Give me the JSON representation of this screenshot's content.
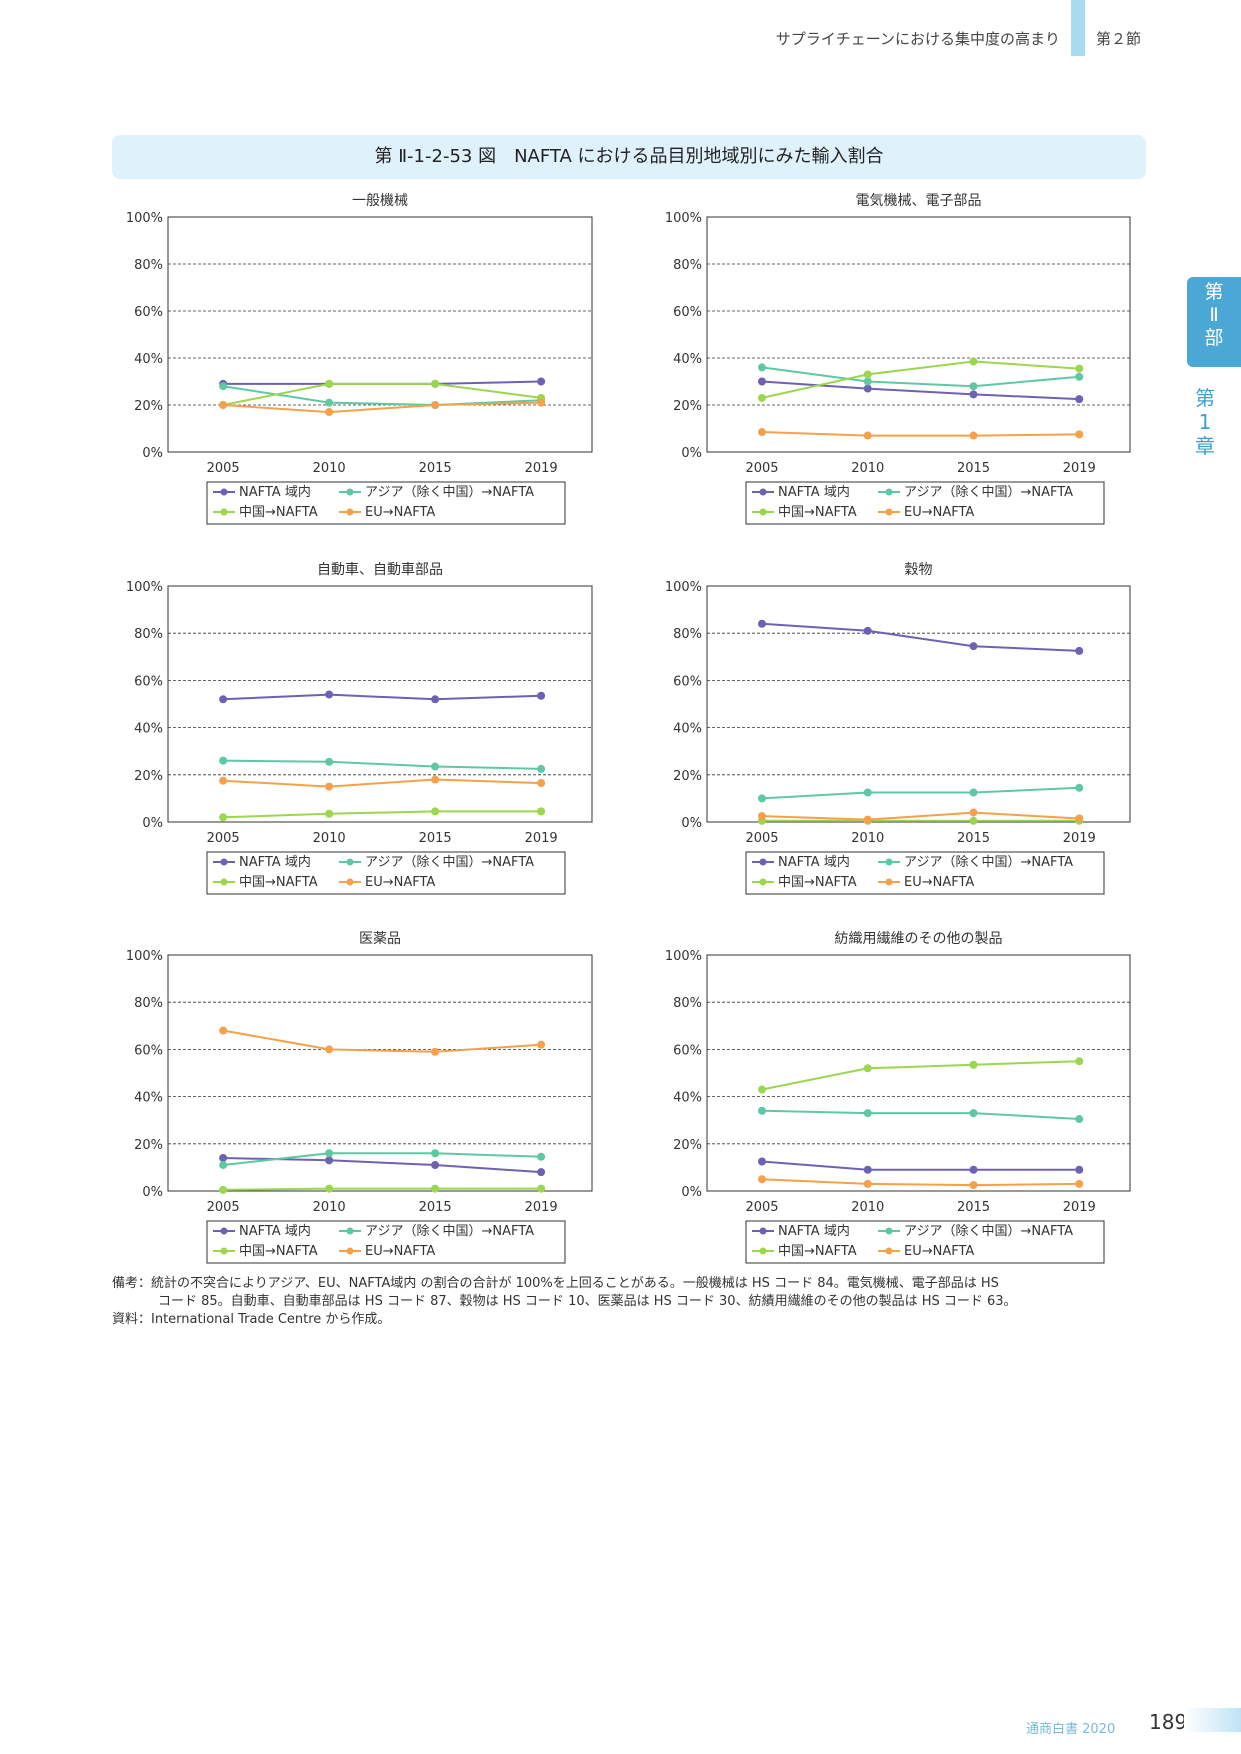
{
  "header": {
    "section_title": "サプライチェーンにおける集中度の高まり",
    "section_number": "第２節"
  },
  "side_tab": {
    "part": [
      "第",
      "Ⅱ",
      "部"
    ],
    "chapter": [
      "第",
      "1",
      "章"
    ]
  },
  "figure": {
    "title": "第 Ⅱ-1-2-53 図　NAFTA における品目別地域別にみた輸入割合"
  },
  "colors": {
    "nafta": "#6b62b3",
    "asia": "#5ec9a1",
    "china": "#9ad64e",
    "eu": "#f5a04a"
  },
  "chart_data": [
    {
      "type": "line",
      "title": "一般機械",
      "x": [
        "2005",
        "2010",
        "2015",
        "2019"
      ],
      "ylim": [
        0,
        100
      ],
      "yticks": [
        "0%",
        "20%",
        "40%",
        "60%",
        "80%",
        "100%"
      ],
      "grid": true,
      "legend": "bottom",
      "series": [
        {
          "name": "NAFTA 域内",
          "key": "nafta",
          "values": [
            29,
            29,
            29,
            30
          ]
        },
        {
          "name": "アジア（除く中国）→NAFTA",
          "key": "asia",
          "values": [
            28,
            21,
            20,
            22
          ]
        },
        {
          "name": "中国→NAFTA",
          "key": "china",
          "values": [
            20,
            29,
            29,
            23
          ]
        },
        {
          "name": "EU→NAFTA",
          "key": "eu",
          "values": [
            20,
            17,
            20,
            21
          ]
        }
      ]
    },
    {
      "type": "line",
      "title": "電気機械、電子部品",
      "x": [
        "2005",
        "2010",
        "2015",
        "2019"
      ],
      "ylim": [
        0,
        100
      ],
      "yticks": [
        "0%",
        "20%",
        "40%",
        "60%",
        "80%",
        "100%"
      ],
      "grid": true,
      "legend": "bottom",
      "series": [
        {
          "name": "NAFTA 域内",
          "key": "nafta",
          "values": [
            30,
            27,
            24.5,
            22.5
          ]
        },
        {
          "name": "アジア（除く中国）→NAFTA",
          "key": "asia",
          "values": [
            36,
            30,
            28,
            32
          ]
        },
        {
          "name": "中国→NAFTA",
          "key": "china",
          "values": [
            23,
            33,
            38.5,
            35.5
          ]
        },
        {
          "name": "EU→NAFTA",
          "key": "eu",
          "values": [
            8.5,
            7,
            7,
            7.5
          ]
        }
      ]
    },
    {
      "type": "line",
      "title": "自動車、自動車部品",
      "x": [
        "2005",
        "2010",
        "2015",
        "2019"
      ],
      "ylim": [
        0,
        100
      ],
      "yticks": [
        "0%",
        "20%",
        "40%",
        "60%",
        "80%",
        "100%"
      ],
      "grid": true,
      "legend": "bottom",
      "series": [
        {
          "name": "NAFTA 域内",
          "key": "nafta",
          "values": [
            52,
            54,
            52,
            53.5
          ]
        },
        {
          "name": "アジア（除く中国）→NAFTA",
          "key": "asia",
          "values": [
            26,
            25.5,
            23.5,
            22.5
          ]
        },
        {
          "name": "中国→NAFTA",
          "key": "china",
          "values": [
            2,
            3.5,
            4.5,
            4.5
          ]
        },
        {
          "name": "EU→NAFTA",
          "key": "eu",
          "values": [
            17.5,
            15,
            18,
            16.5
          ]
        }
      ]
    },
    {
      "type": "line",
      "title": "穀物",
      "x": [
        "2005",
        "2010",
        "2015",
        "2019"
      ],
      "ylim": [
        0,
        100
      ],
      "yticks": [
        "0%",
        "20%",
        "40%",
        "60%",
        "80%",
        "100%"
      ],
      "grid": true,
      "legend": "bottom",
      "series": [
        {
          "name": "NAFTA 域内",
          "key": "nafta",
          "values": [
            84,
            81,
            74.5,
            72.5
          ]
        },
        {
          "name": "アジア（除く中国）→NAFTA",
          "key": "asia",
          "values": [
            10,
            12.5,
            12.5,
            14.5
          ]
        },
        {
          "name": "中国→NAFTA",
          "key": "china",
          "values": [
            0.5,
            0.5,
            0.5,
            0.5
          ]
        },
        {
          "name": "EU→NAFTA",
          "key": "eu",
          "values": [
            2.5,
            1,
            4,
            1.5
          ]
        }
      ]
    },
    {
      "type": "line",
      "title": "医薬品",
      "x": [
        "2005",
        "2010",
        "2015",
        "2019"
      ],
      "ylim": [
        0,
        100
      ],
      "yticks": [
        "0%",
        "20%",
        "40%",
        "60%",
        "80%",
        "100%"
      ],
      "grid": true,
      "legend": "bottom",
      "series": [
        {
          "name": "NAFTA 域内",
          "key": "nafta",
          "values": [
            14,
            13,
            11,
            8
          ]
        },
        {
          "name": "アジア（除く中国）→NAFTA",
          "key": "asia",
          "values": [
            11,
            16,
            16,
            14.5
          ]
        },
        {
          "name": "中国→NAFTA",
          "key": "china",
          "values": [
            0.5,
            1,
            1,
            1
          ]
        },
        {
          "name": "EU→NAFTA",
          "key": "eu",
          "values": [
            68,
            60,
            59,
            62
          ]
        }
      ]
    },
    {
      "type": "line",
      "title": "紡織用繊維のその他の製品",
      "x": [
        "2005",
        "2010",
        "2015",
        "2019"
      ],
      "ylim": [
        0,
        100
      ],
      "yticks": [
        "0%",
        "20%",
        "40%",
        "60%",
        "80%",
        "100%"
      ],
      "grid": true,
      "legend": "bottom",
      "series": [
        {
          "name": "NAFTA 域内",
          "key": "nafta",
          "values": [
            12.5,
            9,
            9,
            9
          ]
        },
        {
          "name": "アジア（除く中国）→NAFTA",
          "key": "asia",
          "values": [
            34,
            33,
            33,
            30.5
          ]
        },
        {
          "name": "中国→NAFTA",
          "key": "china",
          "values": [
            43,
            52,
            53.5,
            55
          ]
        },
        {
          "name": "EU→NAFTA",
          "key": "eu",
          "values": [
            5,
            3,
            2.5,
            3
          ]
        }
      ]
    }
  ],
  "notes": {
    "line1": "備考：統計の不突合によりアジア、EU、NAFTA域内 の割合の合計が 100%を上回ることがある。一般機械は HS コード 84。電気機械、電子部品は HS",
    "line2": "コード 85。自動車、自動車部品は HS コード 87、穀物は HS コード 10、医薬品は HS コード 30、紡績用繊維のその他の製品は HS コード 63。",
    "source": "資料：International Trade Centre から作成。"
  },
  "footer": {
    "publication": "通商白書 2020",
    "page_number": "189"
  }
}
